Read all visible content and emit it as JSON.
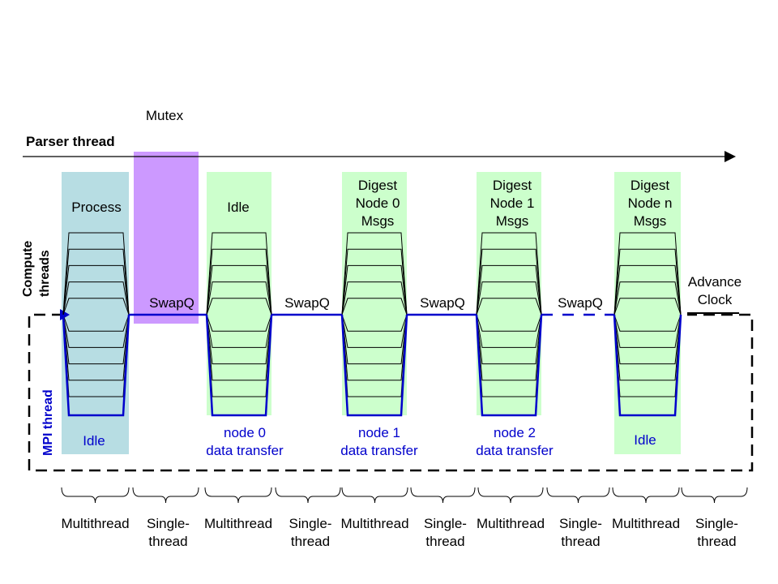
{
  "colors": {
    "green": "#ccffcc",
    "teal": "#b7dde3",
    "purple": "#cc99ff",
    "blue": "#0000cc",
    "black": "#000000"
  },
  "labels": {
    "mutex": "Mutex",
    "parser_thread": "Parser thread",
    "compute_threads_line1": "Compute",
    "compute_threads_line2": "threads",
    "mpi_thread": "MPI thread",
    "advance_clock_line1": "Advance",
    "advance_clock_line2": "Clock"
  },
  "phases": [
    {
      "top": [
        "Process"
      ],
      "bottom": [
        "Idle"
      ]
    },
    {
      "top": [
        "Idle"
      ],
      "bottom": [
        "node 0",
        "data transfer"
      ]
    },
    {
      "top": [
        "Digest",
        "Node 0",
        "Msgs"
      ],
      "bottom": [
        "node 1",
        "data transfer"
      ]
    },
    {
      "top": [
        "Digest",
        "Node 1",
        "Msgs"
      ],
      "bottom": [
        "node 2",
        "data transfer"
      ]
    },
    {
      "top": [
        "Digest",
        "Node n",
        "Msgs"
      ],
      "bottom": [
        "Idle"
      ]
    }
  ],
  "swaps": [
    "SwapQ",
    "SwapQ",
    "SwapQ",
    "SwapQ"
  ],
  "footer": [
    [
      "Multithread"
    ],
    [
      "Single-",
      "thread"
    ],
    [
      "Multithread"
    ],
    [
      "Single-",
      "thread"
    ],
    [
      "Multithread"
    ],
    [
      "Single-",
      "thread"
    ],
    [
      "Multithread"
    ],
    [
      "Single-",
      "thread"
    ],
    [
      "Multithread"
    ],
    [
      "Single-",
      "thread"
    ]
  ]
}
